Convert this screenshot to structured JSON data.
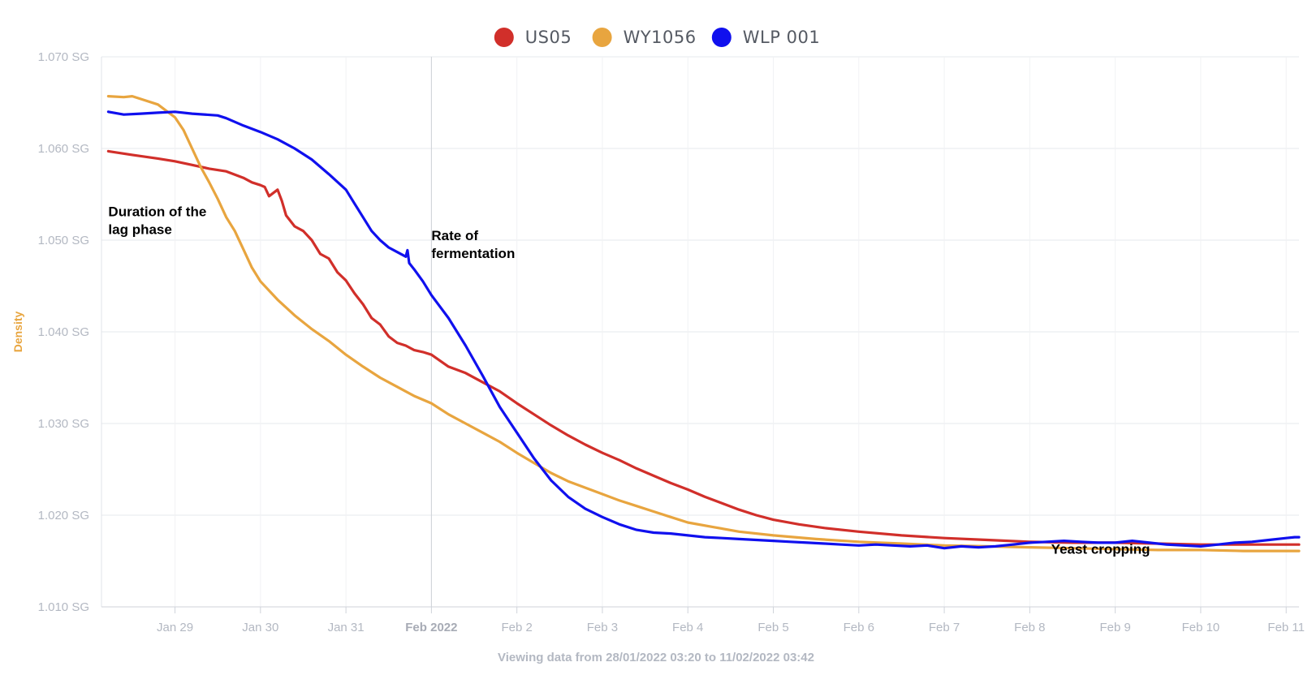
{
  "chart_data": {
    "type": "line",
    "ylabel": "Density",
    "ylim": [
      1.01,
      1.07
    ],
    "y_ticks": [
      {
        "value": 1.07,
        "label": "1.070 SG"
      },
      {
        "value": 1.06,
        "label": "1.060 SG"
      },
      {
        "value": 1.05,
        "label": "1.050 SG"
      },
      {
        "value": 1.04,
        "label": "1.040 SG"
      },
      {
        "value": 1.03,
        "label": "1.030 SG"
      },
      {
        "value": 1.02,
        "label": "1.020 SG"
      },
      {
        "value": 1.01,
        "label": "1.010 SG"
      }
    ],
    "xlim": [
      0.14,
      14.15
    ],
    "x_unit": "days since 28/01/2022 00:00",
    "x_ticks": [
      {
        "value": 1,
        "label": "Jan 29",
        "bold": false
      },
      {
        "value": 2,
        "label": "Jan 30",
        "bold": false
      },
      {
        "value": 3,
        "label": "Jan 31",
        "bold": false
      },
      {
        "value": 4,
        "label": "Feb 2022",
        "bold": true
      },
      {
        "value": 5,
        "label": "Feb 2",
        "bold": false
      },
      {
        "value": 6,
        "label": "Feb 3",
        "bold": false
      },
      {
        "value": 7,
        "label": "Feb 4",
        "bold": false
      },
      {
        "value": 8,
        "label": "Feb 5",
        "bold": false
      },
      {
        "value": 9,
        "label": "Feb 6",
        "bold": false
      },
      {
        "value": 10,
        "label": "Feb 7",
        "bold": false
      },
      {
        "value": 11,
        "label": "Feb 8",
        "bold": false
      },
      {
        "value": 12,
        "label": "Feb 9",
        "bold": false
      },
      {
        "value": 13,
        "label": "Feb 10",
        "bold": false
      },
      {
        "value": 14,
        "label": "Feb 11",
        "bold": false
      }
    ],
    "crosshair_x": 4,
    "series": [
      {
        "name": "US05",
        "color": "#d12f2a",
        "x": [
          0.22,
          0.5,
          0.8,
          1.0,
          1.2,
          1.4,
          1.6,
          1.8,
          1.9,
          2.0,
          2.05,
          2.1,
          2.2,
          2.25,
          2.3,
          2.4,
          2.5,
          2.6,
          2.7,
          2.8,
          2.9,
          3.0,
          3.1,
          3.2,
          3.3,
          3.4,
          3.5,
          3.6,
          3.7,
          3.8,
          3.9,
          4.0,
          4.2,
          4.4,
          4.6,
          4.8,
          5.0,
          5.2,
          5.4,
          5.6,
          5.8,
          6.0,
          6.2,
          6.4,
          6.6,
          6.8,
          7.0,
          7.2,
          7.4,
          7.6,
          7.8,
          8.0,
          8.3,
          8.6,
          9.0,
          9.5,
          10.0,
          10.5,
          11.0,
          11.5,
          12.0,
          12.5,
          13.0,
          13.5,
          14.0,
          14.15
        ],
        "y": [
          1.0597,
          1.0593,
          1.0589,
          1.0586,
          1.0582,
          1.0578,
          1.0575,
          1.0568,
          1.0563,
          1.056,
          1.0558,
          1.0548,
          1.0555,
          1.0543,
          1.0527,
          1.0515,
          1.051,
          1.05,
          1.0485,
          1.048,
          1.0465,
          1.0456,
          1.0442,
          1.043,
          1.0415,
          1.0408,
          1.0395,
          1.0388,
          1.0385,
          1.038,
          1.0378,
          1.0375,
          1.0362,
          1.0355,
          1.0345,
          1.0335,
          1.0322,
          1.031,
          1.0298,
          1.0287,
          1.0277,
          1.0268,
          1.026,
          1.0251,
          1.0243,
          1.0235,
          1.0228,
          1.022,
          1.0213,
          1.0206,
          1.02,
          1.0195,
          1.019,
          1.0186,
          1.0182,
          1.0178,
          1.0175,
          1.0173,
          1.0171,
          1.017,
          1.017,
          1.0169,
          1.0168,
          1.0168,
          1.0168,
          1.0168
        ]
      },
      {
        "name": "WY1056",
        "color": "#e8a53f",
        "x": [
          0.22,
          0.4,
          0.5,
          0.6,
          0.8,
          1.0,
          1.1,
          1.2,
          1.3,
          1.4,
          1.5,
          1.6,
          1.7,
          1.8,
          1.9,
          2.0,
          2.2,
          2.4,
          2.6,
          2.8,
          3.0,
          3.2,
          3.4,
          3.6,
          3.8,
          4.0,
          4.2,
          4.4,
          4.6,
          4.8,
          5.0,
          5.2,
          5.4,
          5.6,
          5.8,
          6.0,
          6.2,
          6.4,
          6.6,
          6.8,
          7.0,
          7.3,
          7.6,
          8.0,
          8.5,
          9.0,
          9.5,
          10.0,
          10.5,
          11.0,
          11.5,
          12.0,
          12.5,
          13.0,
          13.5,
          14.0,
          14.15
        ],
        "y": [
          1.0657,
          1.0656,
          1.0657,
          1.0654,
          1.0648,
          1.0634,
          1.062,
          1.06,
          1.058,
          1.0563,
          1.0545,
          1.0525,
          1.051,
          1.049,
          1.047,
          1.0455,
          1.0435,
          1.0418,
          1.0403,
          1.039,
          1.0375,
          1.0362,
          1.035,
          1.034,
          1.033,
          1.0322,
          1.031,
          1.03,
          1.029,
          1.028,
          1.0268,
          1.0257,
          1.0246,
          1.0237,
          1.023,
          1.0223,
          1.0216,
          1.021,
          1.0204,
          1.0198,
          1.0192,
          1.0187,
          1.0182,
          1.0178,
          1.0174,
          1.0171,
          1.0169,
          1.0167,
          1.0166,
          1.0165,
          1.0164,
          1.0163,
          1.0162,
          1.0162,
          1.0161,
          1.0161,
          1.0161
        ]
      },
      {
        "name": "WLP 001",
        "color": "#1010ee",
        "x": [
          0.22,
          0.4,
          0.6,
          0.8,
          1.0,
          1.2,
          1.5,
          1.6,
          1.8,
          2.0,
          2.2,
          2.4,
          2.6,
          2.8,
          3.0,
          3.1,
          3.2,
          3.3,
          3.4,
          3.5,
          3.6,
          3.7,
          3.72,
          3.74,
          3.8,
          3.9,
          4.0,
          4.2,
          4.4,
          4.6,
          4.8,
          5.0,
          5.2,
          5.4,
          5.6,
          5.8,
          6.0,
          6.2,
          6.4,
          6.6,
          6.8,
          7.0,
          7.2,
          7.4,
          7.6,
          7.8,
          8.0,
          8.2,
          8.4,
          8.6,
          8.8,
          9.0,
          9.2,
          9.4,
          9.6,
          9.8,
          10.0,
          10.2,
          10.4,
          10.6,
          10.8,
          11.0,
          11.2,
          11.4,
          11.6,
          11.8,
          12.0,
          12.2,
          12.4,
          12.6,
          12.8,
          13.0,
          13.2,
          13.4,
          13.6,
          13.8,
          14.0,
          14.1,
          14.15
        ],
        "y": [
          1.064,
          1.0637,
          1.0638,
          1.0639,
          1.064,
          1.0638,
          1.0636,
          1.0633,
          1.0625,
          1.0618,
          1.061,
          1.06,
          1.0588,
          1.0572,
          1.0555,
          1.054,
          1.0525,
          1.051,
          1.05,
          1.0492,
          1.0487,
          1.0482,
          1.0489,
          1.0475,
          1.0468,
          1.0455,
          1.044,
          1.0415,
          1.0385,
          1.0352,
          1.0318,
          1.029,
          1.0262,
          1.0238,
          1.022,
          1.0207,
          1.0198,
          1.019,
          1.0184,
          1.0181,
          1.018,
          1.0178,
          1.0176,
          1.0175,
          1.0174,
          1.0173,
          1.0172,
          1.0171,
          1.017,
          1.0169,
          1.0168,
          1.0167,
          1.0168,
          1.0167,
          1.0166,
          1.0167,
          1.0164,
          1.0166,
          1.0165,
          1.0166,
          1.0168,
          1.017,
          1.0171,
          1.0172,
          1.0171,
          1.017,
          1.017,
          1.0172,
          1.017,
          1.0168,
          1.0167,
          1.0166,
          1.0168,
          1.017,
          1.0171,
          1.0173,
          1.0175,
          1.0176,
          1.0176
        ]
      }
    ],
    "annotations": [
      {
        "lines": [
          "Duration of the",
          "lag phase"
        ],
        "x": 0.22,
        "y": 1.0526
      },
      {
        "lines": [
          "Rate of",
          "fermentation"
        ],
        "x": 4.0,
        "y": 1.05
      },
      {
        "lines": [
          "Yeast cropping"
        ],
        "x": 11.25,
        "y": 1.0158
      }
    ],
    "caption": "Viewing data from 28/01/2022 03:20 to 11/02/2022 03:42",
    "legend_position": "top-center"
  }
}
